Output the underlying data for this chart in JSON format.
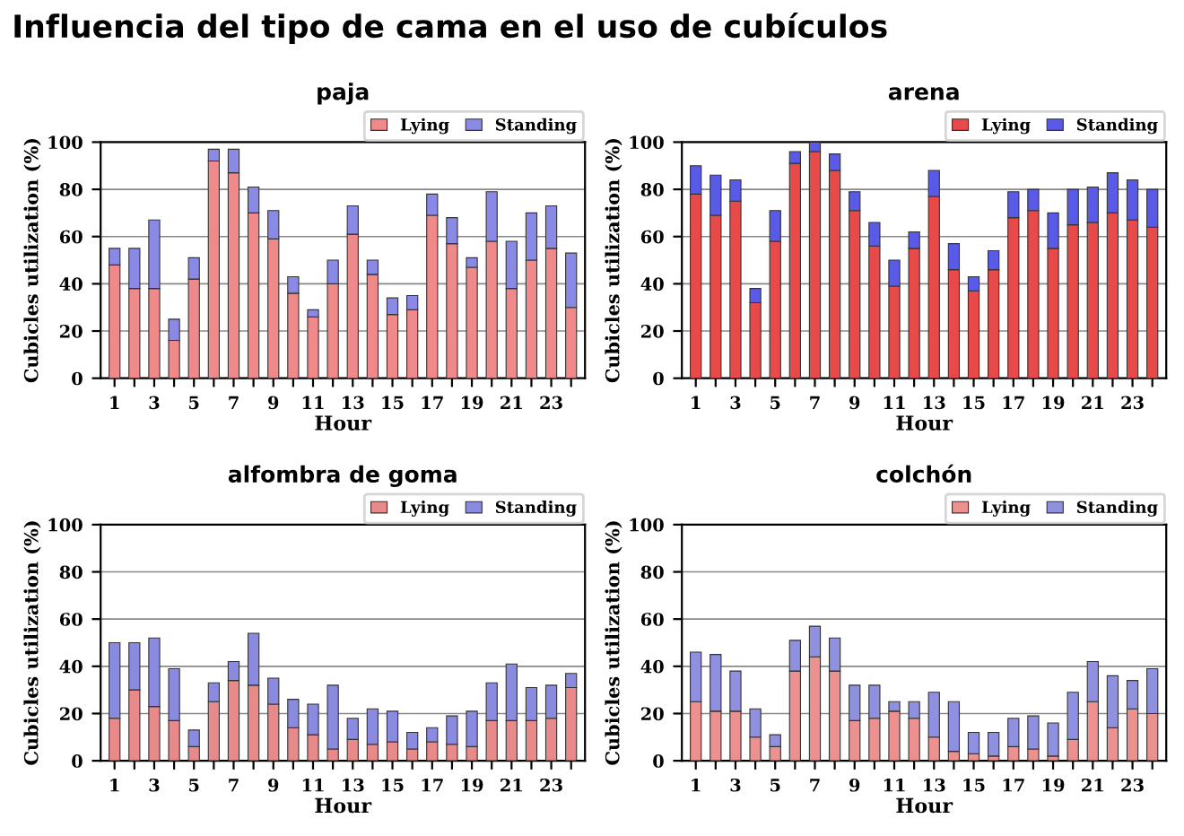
{
  "chart_data": [
    {
      "type": "bar",
      "annotations": [
        "Influencia del tipo de cama en el uso de cubículos"
      ],
      "title": "paja",
      "xlabel": "Hour",
      "ylabel": "Cubicles utilization (%)",
      "categories": [
        "1",
        null,
        "3",
        null,
        "5",
        null,
        "7",
        null,
        "9",
        null,
        "11",
        null,
        "13",
        null,
        "15",
        null,
        "17",
        null,
        "19",
        null,
        "21",
        null,
        "23",
        null
      ],
      "stacked": true,
      "ylim": [
        0,
        100
      ],
      "yticks": [
        0,
        20,
        40,
        60,
        80,
        100
      ],
      "grid": "y",
      "legend": "top right",
      "series": [
        {
          "name": "Lying",
          "color": "#f08a8a",
          "values": [
            48,
            38,
            38,
            16,
            42,
            92,
            87,
            70,
            59,
            36,
            26,
            40,
            61,
            44,
            27,
            29,
            69,
            57,
            47,
            58,
            38,
            50,
            55,
            30
          ]
        },
        {
          "name": "Standing",
          "color": "#8a8ae6",
          "values": [
            7,
            17,
            29,
            9,
            9,
            5,
            10,
            11,
            12,
            7,
            3,
            10,
            12,
            6,
            7,
            6,
            9,
            11,
            4,
            21,
            20,
            20,
            18,
            23
          ]
        }
      ]
    },
    {
      "type": "bar",
      "title": "arena",
      "xlabel": "Hour",
      "ylabel": "Cubicles utilization (%)",
      "categories": [
        "1",
        null,
        "3",
        null,
        "5",
        null,
        "7",
        null,
        "9",
        null,
        "11",
        null,
        "13",
        null,
        "15",
        null,
        "17",
        null,
        "19",
        null,
        "21",
        null,
        "23",
        null
      ],
      "stacked": true,
      "ylim": [
        0,
        100
      ],
      "yticks": [
        0,
        20,
        40,
        60,
        80,
        100
      ],
      "grid": "y",
      "legend": "top right",
      "series": [
        {
          "name": "Lying",
          "color": "#e84a4a",
          "values": [
            78,
            69,
            75,
            32,
            58,
            91,
            96,
            88,
            71,
            56,
            39,
            55,
            77,
            46,
            37,
            46,
            68,
            71,
            55,
            65,
            66,
            70,
            67,
            64
          ]
        },
        {
          "name": "Standing",
          "color": "#5a5ae8",
          "values": [
            12,
            17,
            9,
            6,
            13,
            5,
            4,
            7,
            8,
            10,
            11,
            7,
            11,
            11,
            6,
            8,
            11,
            9,
            15,
            15,
            15,
            17,
            17,
            16
          ]
        }
      ]
    },
    {
      "type": "bar",
      "title": "alfombra de goma",
      "xlabel": "Hour",
      "ylabel": "Cubicles utilization (%)",
      "categories": [
        "1",
        null,
        "3",
        null,
        "5",
        null,
        "7",
        null,
        "9",
        null,
        "11",
        null,
        "13",
        null,
        "15",
        null,
        "17",
        null,
        "19",
        null,
        "21",
        null,
        "23",
        null
      ],
      "stacked": true,
      "ylim": [
        0,
        100
      ],
      "yticks": [
        0,
        20,
        40,
        60,
        80,
        100
      ],
      "grid": "y",
      "legend": "top right",
      "series": [
        {
          "name": "Lying",
          "color": "#e88a8a",
          "values": [
            18,
            30,
            23,
            17,
            6,
            25,
            34,
            32,
            24,
            14,
            11,
            5,
            9,
            7,
            8,
            5,
            8,
            7,
            6,
            17,
            17,
            17,
            18,
            31
          ]
        },
        {
          "name": "Standing",
          "color": "#8a8ae0",
          "values": [
            32,
            20,
            29,
            22,
            7,
            8,
            8,
            22,
            11,
            12,
            13,
            27,
            9,
            15,
            13,
            7,
            6,
            12,
            15,
            16,
            24,
            14,
            14,
            6
          ]
        }
      ]
    },
    {
      "type": "bar",
      "title": "colchón",
      "xlabel": "Hour",
      "ylabel": "Cubicles utilization (%)",
      "categories": [
        "1",
        null,
        "3",
        null,
        "5",
        null,
        "7",
        null,
        "9",
        null,
        "11",
        null,
        "13",
        null,
        "15",
        null,
        "17",
        null,
        "19",
        null,
        "21",
        null,
        "23",
        null
      ],
      "stacked": true,
      "ylim": [
        0,
        100
      ],
      "yticks": [
        0,
        20,
        40,
        60,
        80,
        100
      ],
      "grid": "y",
      "legend": "top right",
      "series": [
        {
          "name": "Lying",
          "color": "#ec9090",
          "values": [
            25,
            21,
            21,
            10,
            6,
            38,
            44,
            38,
            17,
            18,
            21,
            18,
            10,
            4,
            3,
            2,
            6,
            5,
            2,
            9,
            25,
            14,
            22,
            20
          ]
        },
        {
          "name": "Standing",
          "color": "#9090e0",
          "values": [
            21,
            24,
            17,
            12,
            5,
            13,
            13,
            14,
            15,
            14,
            4,
            7,
            19,
            21,
            9,
            10,
            12,
            14,
            14,
            20,
            17,
            22,
            12,
            19
          ]
        }
      ]
    }
  ]
}
